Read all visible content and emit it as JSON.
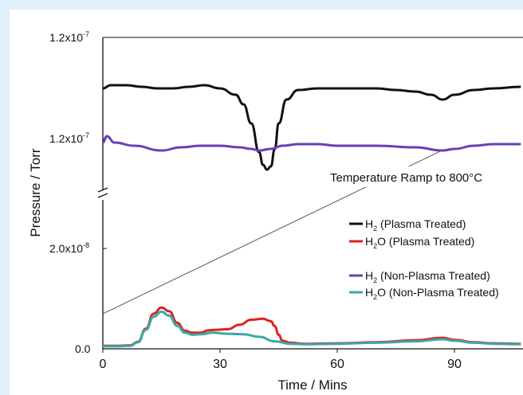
{
  "chart_data": {
    "type": "line",
    "xlabel": "Time / Mins",
    "ylabel": "Pressure / Torr",
    "x_ticks": [
      "0",
      "30",
      "60",
      "90"
    ],
    "x_range": [
      0,
      107
    ],
    "y_tick_labels": {
      "bottom": [
        "0.0",
        "2.0x10-8"
      ],
      "top": [
        "1.2x10-7",
        "1.2x10-7"
      ]
    },
    "broken_axis": true,
    "grid": false,
    "legend_position": "right",
    "annotation": "Temperature Ramp to 800°C",
    "series": [
      {
        "name": "H2 (Plasma Treated)",
        "color": "#111111",
        "panel": "top",
        "x": [
          0,
          2,
          6,
          10,
          14,
          18,
          22,
          26,
          30,
          34,
          36,
          38,
          40,
          41,
          42,
          43,
          44,
          45,
          47,
          50,
          55,
          60,
          65,
          70,
          75,
          80,
          84,
          87,
          90,
          95,
          100,
          107
        ],
        "y": [
          64,
          66,
          66,
          65,
          64,
          64,
          65,
          66,
          64,
          60,
          54,
          42,
          24,
          16,
          13,
          15,
          26,
          42,
          57,
          63,
          64,
          64,
          64,
          64,
          63,
          62,
          60,
          57,
          60,
          63,
          64,
          65
        ]
      },
      {
        "name": "H2 (Non-Plasma Treated)",
        "color": "#6a3fb5",
        "panel": "top",
        "x": [
          0,
          1,
          3,
          8,
          15,
          20,
          25,
          30,
          35,
          38,
          40,
          43,
          46,
          50,
          55,
          60,
          70,
          80,
          87,
          90,
          95,
          100,
          107
        ],
        "y": [
          30,
          34,
          30,
          28,
          25,
          27,
          28,
          28,
          27,
          26,
          25,
          26,
          28,
          29,
          29,
          28,
          28,
          27,
          25,
          26,
          28,
          29,
          29
        ]
      },
      {
        "name": "H2O (Plasma Treated)",
        "color": "#e02020",
        "panel": "bottom",
        "x": [
          0,
          4,
          7,
          9,
          11,
          13,
          15,
          17,
          19,
          21,
          23,
          25,
          27,
          29,
          32,
          35,
          38,
          41,
          43,
          44,
          45,
          46,
          48,
          52,
          60,
          70,
          80,
          87,
          90,
          95,
          100,
          107
        ],
        "y": [
          0.6,
          0.6,
          0.7,
          1.4,
          4.0,
          7.0,
          8.2,
          7.5,
          5.2,
          3.6,
          3.2,
          3.2,
          3.7,
          3.8,
          3.9,
          4.8,
          5.8,
          6.0,
          5.5,
          4.5,
          2.8,
          1.6,
          1.2,
          1.0,
          1.1,
          1.3,
          1.7,
          2.2,
          1.8,
          1.3,
          1.1,
          1.0
        ]
      },
      {
        "name": "H2O (Non-Plasma Treated)",
        "color": "#3aa8a8",
        "panel": "bottom",
        "x": [
          0,
          4,
          7,
          9,
          11,
          13,
          15,
          17,
          19,
          21,
          23,
          25,
          28,
          32,
          36,
          40,
          44,
          48,
          52,
          60,
          70,
          80,
          87,
          90,
          95,
          100,
          107
        ],
        "y": [
          0.5,
          0.5,
          0.6,
          1.3,
          3.8,
          6.4,
          7.4,
          6.6,
          4.6,
          3.2,
          2.8,
          2.9,
          3.2,
          3.0,
          2.9,
          2.4,
          1.5,
          1.0,
          0.9,
          1.0,
          1.2,
          1.5,
          1.9,
          1.6,
          1.2,
          1.0,
          0.9
        ]
      }
    ]
  },
  "legend": {
    "entries": [
      {
        "main": "H",
        "sub": "2",
        "rest": " (Plasma Treated)",
        "color": "#111111"
      },
      {
        "main": "H",
        "sub": "2",
        "rest": "O (Plasma Treated)",
        "color": "#e02020"
      },
      {
        "main": "H",
        "sub": "2",
        "rest": " (Non-Plasma Treated)",
        "color": "#6a3fb5"
      },
      {
        "main": "H",
        "sub": "2",
        "rest": "O (Non-Plasma Treated)",
        "color": "#3aa8a8"
      }
    ]
  },
  "ytick_parts": {
    "zero": "0.0",
    "mid": {
      "mant": "2.0x10",
      "exp": "-8"
    },
    "top": {
      "mant": "1.2x10",
      "exp": "-7"
    }
  }
}
